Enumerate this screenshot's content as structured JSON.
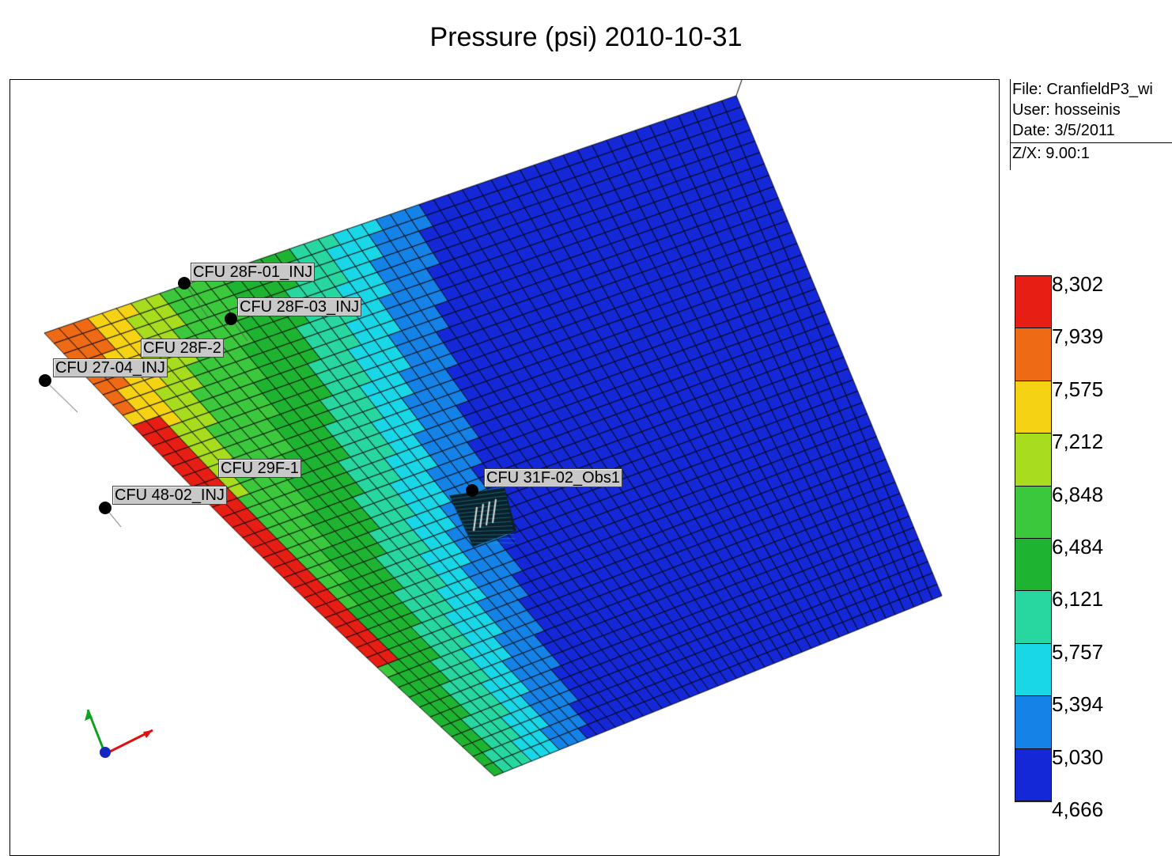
{
  "title": "Pressure (psi) 2010-10-31",
  "info": {
    "file": "File: CranfieldP3_wi",
    "user": "User:  hosseinis",
    "date": "Date: 3/5/2011",
    "zx": "Z/X: 9.00:1"
  },
  "wells": [
    {
      "name": "CFU 28F-01_INJ"
    },
    {
      "name": "CFU 28F-03_INJ"
    },
    {
      "name": "CFU 28F-2"
    },
    {
      "name": "CFU 27-04_INJ"
    },
    {
      "name": "CFU 29F-1"
    },
    {
      "name": "CFU 48-02_INJ"
    },
    {
      "name": "CFU 31F-02_Obs1"
    }
  ],
  "chart_data": {
    "type": "heatmap",
    "title": "Pressure (psi) 2010-10-31",
    "colorbar": {
      "ticks": [
        "8,302",
        "7,939",
        "7,575",
        "7,212",
        "6,848",
        "6,484",
        "6,121",
        "5,757",
        "5,394",
        "5,030",
        "4,666"
      ],
      "min": 4666,
      "max": 8302,
      "colors": [
        "#e61e14",
        "#ee6a14",
        "#f5d214",
        "#a8dc1e",
        "#3cc83c",
        "#1eb432",
        "#28d7a0",
        "#19d7e6",
        "#1482e6",
        "#1428d7"
      ]
    },
    "field": "pressure decreases from the western edge (~8,302 psi) to the eastern side (~4,666 psi)"
  }
}
